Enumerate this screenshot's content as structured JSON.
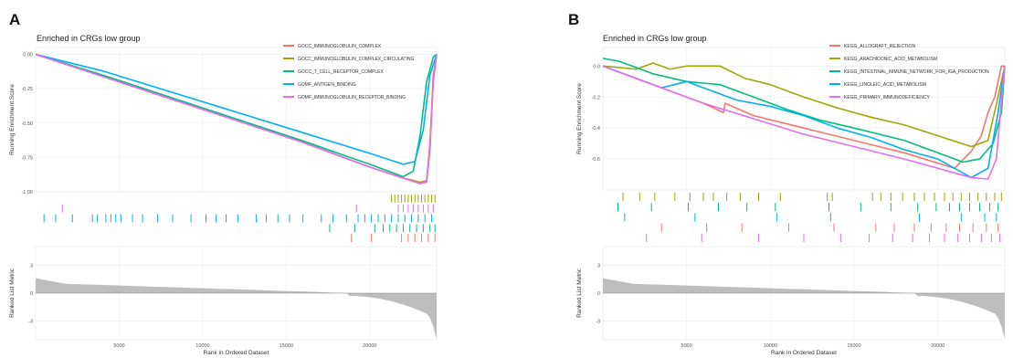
{
  "chart_data": [
    {
      "panel": "A",
      "type": "line",
      "title": "Enriched in CRGs low group",
      "ylabel_top": "Running Enrichment Score",
      "ylabel_bottom": "Ranked List Metric",
      "xlabel": "Rank in Ordered Dataset",
      "x_ticks": [
        5000,
        10000,
        15000,
        20000
      ],
      "x_tick_labels": [
        "5000",
        "10000",
        "15000",
        "20000"
      ],
      "xlim": [
        0,
        24000
      ],
      "ylim_top": [
        -1.0,
        0.05
      ],
      "y_ticks_top": [
        0.0,
        -0.25,
        -0.5,
        -0.75,
        -1.0
      ],
      "y_tick_labels_top": [
        "0.00",
        "-0.25",
        "-0.50",
        "-0.75",
        "-1.00"
      ],
      "ylim_bottom": [
        -5,
        5
      ],
      "y_ticks_bottom": [
        3,
        0,
        -3
      ],
      "y_tick_labels_bottom": [
        "3",
        "0",
        "-3"
      ],
      "legend_position": "top-right",
      "series": [
        {
          "name": "GOCC_IMMUNOGLOBULIN_COMPLEX",
          "color": "#F8766D",
          "x": [
            0,
            4000,
            8000,
            12000,
            16000,
            20000,
            22000,
            23000,
            23400,
            23600,
            23800,
            24000
          ],
          "y": [
            0.0,
            -0.16,
            -0.32,
            -0.48,
            -0.64,
            -0.82,
            -0.9,
            -0.94,
            -0.93,
            -0.7,
            -0.2,
            0.0
          ]
        },
        {
          "name": "GOCC_IMMUNOGLOBULIN_COMPLEX_CIRCULATING",
          "color": "#A3A500",
          "x": [
            0,
            4000,
            8000,
            12000,
            16000,
            20000,
            22000,
            23000,
            23400,
            23600,
            23800,
            24000
          ],
          "y": [
            0.0,
            -0.16,
            -0.32,
            -0.48,
            -0.64,
            -0.82,
            -0.9,
            -0.93,
            -0.92,
            -0.65,
            -0.15,
            0.0
          ]
        },
        {
          "name": "GOCC_T_CELL_RECEPTOR_COMPLEX",
          "color": "#00BF7D",
          "x": [
            0,
            4000,
            8000,
            12000,
            16000,
            20000,
            22000,
            22600,
            23000,
            23400,
            23800,
            24000
          ],
          "y": [
            0.0,
            -0.15,
            -0.31,
            -0.47,
            -0.63,
            -0.8,
            -0.89,
            -0.85,
            -0.6,
            -0.2,
            -0.02,
            0.0
          ]
        },
        {
          "name": "GOMF_ANTIGEN_BINDING",
          "color": "#00B0F6",
          "x": [
            0,
            4000,
            8000,
            12000,
            16000,
            20000,
            22000,
            22700,
            23200,
            23600,
            24000
          ],
          "y": [
            0.0,
            -0.12,
            -0.27,
            -0.42,
            -0.57,
            -0.72,
            -0.8,
            -0.78,
            -0.55,
            -0.15,
            0.0
          ]
        },
        {
          "name": "GOMF_IMMUNOGLOBULIN_RECEPTOR_BINDING",
          "color": "#E76BF3",
          "x": [
            0,
            4000,
            8000,
            12000,
            16000,
            20000,
            22000,
            23000,
            23400,
            23600,
            23800,
            24000
          ],
          "y": [
            0.0,
            -0.16,
            -0.32,
            -0.48,
            -0.64,
            -0.82,
            -0.9,
            -0.94,
            -0.92,
            -0.68,
            -0.18,
            0.0
          ]
        }
      ],
      "rug": [
        {
          "color": "#A3A500",
          "hits": [
            21300,
            21500,
            21700,
            21900,
            22100,
            22300,
            22500,
            22700,
            22900,
            23100,
            23300,
            23500,
            23700,
            23900
          ]
        },
        {
          "color": "#E76BF3",
          "hits": [
            1600,
            19200,
            21700,
            22000,
            22300,
            22600,
            22900,
            23200,
            23500,
            23800
          ]
        },
        {
          "color": "#00B0F6",
          "hits": [
            500,
            1200,
            2200,
            3400,
            3700,
            4200,
            4500,
            4800,
            5100,
            5800,
            6400,
            7300,
            8200,
            9300,
            10200,
            10800,
            11400,
            12100,
            13200,
            13800,
            14500,
            15200,
            16000,
            17100,
            17800,
            18600,
            19300,
            19700,
            20100,
            20500,
            20900,
            21300,
            21700,
            22100,
            22500,
            22900,
            23300,
            23700
          ]
        },
        {
          "color": "#00BF7D",
          "hits": [
            17600,
            19100,
            20300,
            20800,
            21200,
            21600,
            22000,
            22400,
            22800,
            23200,
            23600,
            23900
          ]
        },
        {
          "color": "#F8766D",
          "hits": [
            18900,
            20100,
            21900,
            22300,
            22700,
            23100,
            23500,
            23900
          ]
        }
      ]
    },
    {
      "panel": "B",
      "type": "line",
      "title": "Enriched in CRGs low group",
      "ylabel_top": "Running Enrichment Score",
      "ylabel_bottom": "Ranked List Metric",
      "xlabel": "Rank in Ordered Dataset",
      "x_ticks": [
        5000,
        10000,
        15000,
        20000
      ],
      "x_tick_labels": [
        "5000",
        "10000",
        "15000",
        "20000"
      ],
      "xlim": [
        0,
        24000
      ],
      "ylim_top": [
        -0.8,
        0.12
      ],
      "y_ticks_top": [
        0.0,
        -0.2,
        -0.4,
        -0.6
      ],
      "y_tick_labels_top": [
        "0.0",
        "-0.2",
        "-0.4",
        "-0.6"
      ],
      "ylim_bottom": [
        -5,
        5
      ],
      "y_ticks_bottom": [
        3,
        0,
        -3
      ],
      "y_tick_labels_bottom": [
        "3",
        "0",
        "-3"
      ],
      "legend_position": "top-right",
      "series": [
        {
          "name": "KEGG_ALLOGRAFT_REJECTION",
          "color": "#F8766D",
          "x": [
            0,
            3000,
            6000,
            7200,
            7300,
            9000,
            12000,
            15000,
            18000,
            21000,
            22000,
            22600,
            23000,
            23400,
            23800,
            24000
          ],
          "y": [
            0.0,
            -0.12,
            -0.24,
            -0.3,
            -0.24,
            -0.32,
            -0.4,
            -0.48,
            -0.56,
            -0.66,
            -0.55,
            -0.45,
            -0.3,
            -0.2,
            0.0,
            0.0
          ]
        },
        {
          "name": "KEGG_ARACHIDONIC_ACID_METABOLISM",
          "color": "#A3A500",
          "x": [
            0,
            2000,
            3000,
            4000,
            5000,
            7000,
            8500,
            10000,
            12000,
            14000,
            16000,
            18000,
            20000,
            22000,
            23000,
            23600,
            24000
          ],
          "y": [
            0.0,
            -0.02,
            0.02,
            -0.02,
            0.0,
            0.0,
            -0.08,
            -0.12,
            -0.2,
            -0.27,
            -0.33,
            -0.38,
            -0.45,
            -0.52,
            -0.48,
            -0.2,
            0.0
          ]
        },
        {
          "name": "KEGG_INTESTINAL_IMMUNE_NETWORK_FOR_IGA_PRODUCTION",
          "color": "#00BF7D",
          "x": [
            0,
            1000,
            3000,
            5000,
            7000,
            9000,
            11000,
            13000,
            15000,
            18000,
            20000,
            21500,
            22500,
            23300,
            23800,
            24000
          ],
          "y": [
            0.05,
            0.03,
            -0.05,
            -0.1,
            -0.12,
            -0.2,
            -0.28,
            -0.35,
            -0.4,
            -0.48,
            -0.56,
            -0.62,
            -0.6,
            -0.5,
            -0.3,
            0.0
          ]
        },
        {
          "name": "KEGG_LINOLEIC_ACID_METABOLISM",
          "color": "#00B0F6",
          "x": [
            0,
            2000,
            3500,
            5000,
            6500,
            8000,
            10000,
            12000,
            14000,
            16000,
            18000,
            20000,
            22000,
            23000,
            23600,
            24000
          ],
          "y": [
            0.0,
            -0.08,
            -0.14,
            -0.1,
            -0.16,
            -0.22,
            -0.26,
            -0.32,
            -0.4,
            -0.46,
            -0.54,
            -0.6,
            -0.72,
            -0.66,
            -0.3,
            0.0
          ]
        },
        {
          "name": "KEGG_PRIMARY_IMMUNODEFICIENCY",
          "color": "#E76BF3",
          "x": [
            0,
            3000,
            6000,
            9000,
            12000,
            15000,
            18000,
            20000,
            22000,
            23000,
            23500,
            23900,
            24000
          ],
          "y": [
            0.0,
            -0.12,
            -0.24,
            -0.34,
            -0.44,
            -0.52,
            -0.6,
            -0.66,
            -0.72,
            -0.73,
            -0.6,
            -0.1,
            0.0
          ]
        }
      ],
      "rug": [
        {
          "color": "#A3A500",
          "hits": [
            1200,
            2200,
            3100,
            4300,
            5200,
            6000,
            6600,
            7400,
            8200,
            9300,
            10600,
            13400,
            13700,
            16100,
            16600,
            17200,
            17900,
            18600,
            19200,
            19800,
            20400,
            20900,
            21400,
            21900,
            22400,
            22900,
            23400,
            23800
          ]
        },
        {
          "color": "#00BF7D",
          "hits": [
            900,
            2900,
            5100,
            6900,
            8600,
            10300,
            13500,
            15400,
            17200,
            18800,
            19900,
            20700,
            21300,
            21900,
            22500,
            23100,
            23600
          ]
        },
        {
          "color": "#00B0F6",
          "hits": [
            1300,
            5500,
            10400,
            13600,
            18900,
            21400,
            22800,
            23500
          ]
        },
        {
          "color": "#F8766D",
          "hits": [
            3500,
            6200,
            8300,
            11100,
            13800,
            16300,
            17400,
            18600,
            19600,
            20500,
            21300,
            22100,
            22900,
            23600
          ]
        },
        {
          "color": "#E76BF3",
          "hits": [
            2600,
            5900,
            9300,
            12000,
            14200,
            15900,
            17300,
            18500,
            19500,
            20400,
            21200,
            21900,
            22600,
            23200,
            23700
          ]
        }
      ]
    }
  ]
}
